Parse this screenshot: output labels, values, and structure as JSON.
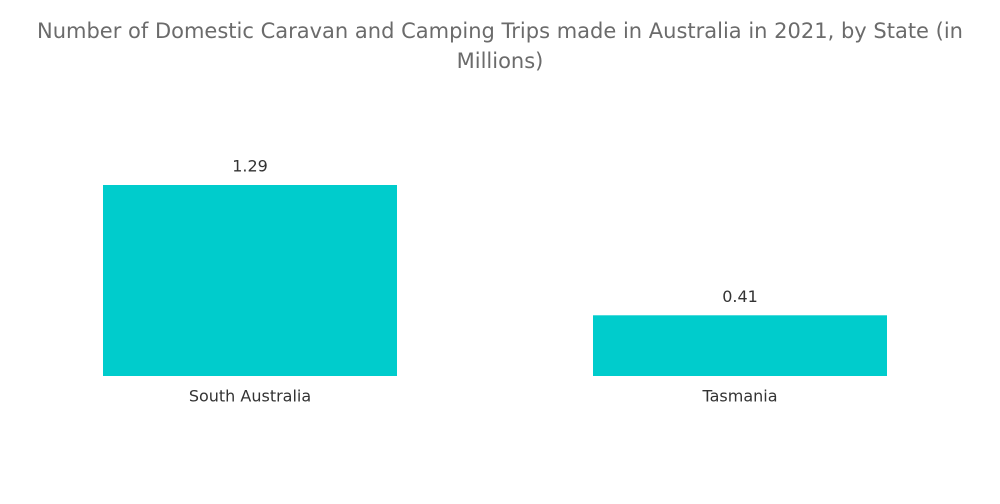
{
  "chart_data": {
    "type": "bar",
    "title": "Number of Domestic Caravan and Camping Trips made in Australia in 2021, by State (in Millions)",
    "categories": [
      "South Australia",
      "Tasmania"
    ],
    "values": [
      1.29,
      0.41
    ],
    "color": "#00cccc"
  }
}
